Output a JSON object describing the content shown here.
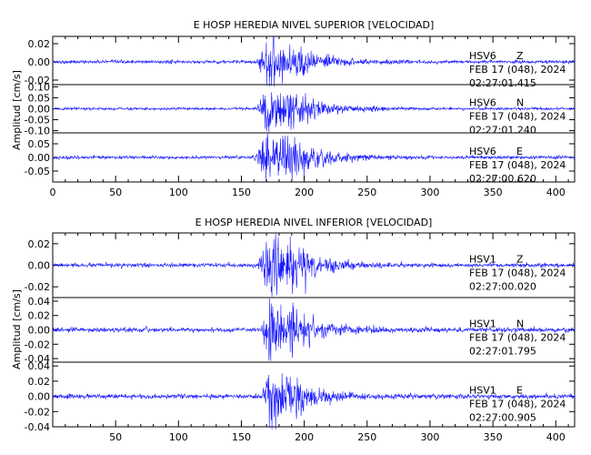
{
  "chart_data": [
    {
      "type": "line",
      "title": "E HOSP HEREDIA NIVEL SUPERIOR [VELOCIDAD]",
      "ylabel": "Amplitud [cm/s]",
      "xlabel": "",
      "xlim": [
        0,
        415
      ],
      "x_ticks": [
        "0",
        "50",
        "100",
        "150",
        "200",
        "250",
        "300",
        "350",
        "400"
      ],
      "grid": false,
      "panels": [
        {
          "station": "HSV6",
          "component": "Z",
          "date": "FEB 17 (048), 2024",
          "time": "02:27:01.415",
          "ylim": [
            -0.025,
            0.028
          ],
          "y_ticks": [
            "0.02",
            "0.00",
            "-0.02"
          ],
          "y_tick_values": [
            0.02,
            0.0,
            -0.02
          ],
          "noise": 0.0009,
          "events": [
            {
              "onset": 162,
              "peak": 172,
              "amp": 0.027,
              "decay": 22
            },
            {
              "onset": 186,
              "peak": 188,
              "amp": 0.008,
              "decay": 18
            }
          ]
        },
        {
          "station": "HSV6",
          "component": "N",
          "date": "FEB 17 (048), 2024",
          "time": "02:27:01.240",
          "ylim": [
            -0.11,
            0.11
          ],
          "y_ticks": [
            "0.10",
            "0.05",
            "0.00",
            "-0.05",
            "-0.10"
          ],
          "y_tick_values": [
            0.1,
            0.05,
            0.0,
            -0.05,
            -0.1
          ],
          "noise": 0.003,
          "events": [
            {
              "onset": 162,
              "peak": 172,
              "amp": 0.1,
              "decay": 22
            },
            {
              "onset": 185,
              "peak": 188,
              "amp": 0.045,
              "decay": 20
            }
          ]
        },
        {
          "station": "HSV6",
          "component": "E",
          "date": "FEB 17 (048), 2024",
          "time": "02:27:00.620",
          "ylim": [
            -0.09,
            0.09
          ],
          "y_ticks": [
            "0.05",
            "0.00",
            "-0.05"
          ],
          "y_tick_values": [
            0.05,
            0.0,
            -0.05
          ],
          "noise": 0.003,
          "events": [
            {
              "onset": 160,
              "peak": 172,
              "amp": 0.085,
              "decay": 22
            },
            {
              "onset": 182,
              "peak": 185,
              "amp": 0.06,
              "decay": 20
            }
          ]
        }
      ]
    },
    {
      "type": "line",
      "title": "E HOSP HEREDIA NIVEL INFERIOR [VELOCIDAD]",
      "ylabel": "Amplitud [cm/s]",
      "xlabel": "",
      "xlim": [
        0,
        415
      ],
      "x_ticks": [
        "50",
        "100",
        "150",
        "200",
        "250",
        "300",
        "350",
        "400"
      ],
      "grid": false,
      "panels": [
        {
          "station": "HSV1",
          "component": "Z",
          "date": "FEB 17 (048), 2024",
          "time": "02:27:00.020",
          "ylim": [
            -0.03,
            0.03
          ],
          "y_ticks": [
            "0.02",
            "0.00",
            "-0.02"
          ],
          "y_tick_values": [
            0.02,
            0.0,
            -0.02
          ],
          "noise": 0.0009,
          "events": [
            {
              "onset": 163,
              "peak": 172,
              "amp": 0.028,
              "decay": 22
            },
            {
              "onset": 185,
              "peak": 190,
              "amp": 0.01,
              "decay": 18
            }
          ]
        },
        {
          "station": "HSV1",
          "component": "N",
          "date": "FEB 17 (048), 2024",
          "time": "02:27:01.795",
          "ylim": [
            -0.045,
            0.045
          ],
          "y_ticks": [
            "0.04",
            "0.02",
            "0.00",
            "-0.02",
            "-0.04"
          ],
          "y_tick_values": [
            0.04,
            0.02,
            0.0,
            -0.02,
            -0.04
          ],
          "noise": 0.0015,
          "events": [
            {
              "onset": 165,
              "peak": 173,
              "amp": 0.043,
              "decay": 20
            },
            {
              "onset": 186,
              "peak": 190,
              "amp": 0.01,
              "decay": 18
            }
          ]
        },
        {
          "station": "HSV1",
          "component": "E",
          "date": "FEB 17 (048), 2024",
          "time": "02:27:00.905",
          "ylim": [
            -0.04,
            0.045
          ],
          "y_ticks": [
            "0.04",
            "0.02",
            "0.00",
            "-0.02",
            "-0.04"
          ],
          "y_tick_values": [
            0.04,
            0.02,
            0.0,
            -0.02,
            -0.04
          ],
          "noise": 0.0015,
          "events": [
            {
              "onset": 166,
              "peak": 174,
              "amp": 0.04,
              "decay": 20
            },
            {
              "onset": 186,
              "peak": 190,
              "amp": 0.008,
              "decay": 18
            }
          ]
        }
      ]
    }
  ],
  "colors": {
    "trace": "#1a1aff",
    "axes": "#000000"
  }
}
